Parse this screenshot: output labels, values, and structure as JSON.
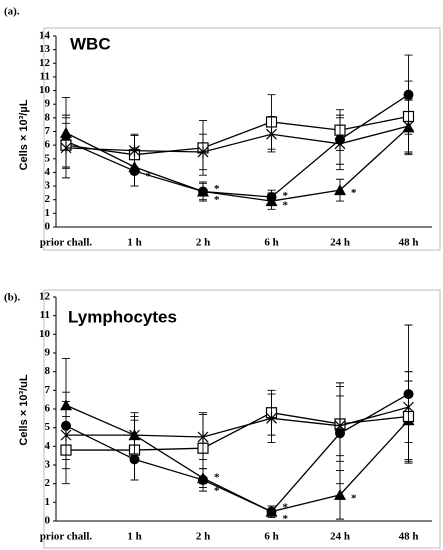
{
  "chart_data": [
    {
      "type": "line",
      "panel_label": "(a).",
      "title": "WBC",
      "ylabel": "Cells × 10³/µL",
      "categories": [
        "prior chall.",
        "1 h",
        "2 h",
        "6 h",
        "24 h",
        "48 h"
      ],
      "ylim": [
        0,
        14
      ],
      "yticks": [
        0,
        1,
        2,
        3,
        4,
        5,
        6,
        7,
        8,
        9,
        10,
        11,
        12,
        13,
        14
      ],
      "series": [
        {
          "marker": "circle",
          "color": "#000000",
          "values": [
            6.3,
            4.1,
            2.6,
            2.2,
            6.4,
            9.7
          ],
          "errors": [
            1.9,
            1.1,
            0.6,
            0.5,
            1.8,
            2.9
          ]
        },
        {
          "marker": "triangle",
          "color": "#000000",
          "values": [
            6.9,
            4.4,
            2.6,
            1.9,
            2.7,
            7.3
          ],
          "errors": [
            2.6,
            1.4,
            0.7,
            0.6,
            0.8,
            2.0
          ]
        },
        {
          "marker": "square",
          "color": "#000000",
          "values": [
            6.0,
            5.3,
            5.8,
            7.7,
            7.1,
            8.1
          ],
          "errors": [
            1.6,
            1.4,
            2.0,
            2.0,
            1.5,
            2.6
          ]
        },
        {
          "marker": "cross",
          "color": "#000000",
          "values": [
            5.8,
            5.6,
            5.5,
            6.8,
            6.1,
            7.4
          ],
          "errors": [
            2.2,
            1.2,
            1.3,
            1.3,
            1.9,
            2.0
          ]
        }
      ],
      "annotations": [
        {
          "text": "*",
          "x": "1 h",
          "y": 3.8
        },
        {
          "text": "*",
          "x": "2 h",
          "y": 2.9
        },
        {
          "text": "*",
          "x": "2 h",
          "y": 2.1
        },
        {
          "text": "*",
          "x": "6 h",
          "y": 2.4
        },
        {
          "text": "*",
          "x": "6 h",
          "y": 1.7
        },
        {
          "text": "*",
          "x": "24 h",
          "y": 2.6
        }
      ]
    },
    {
      "type": "line",
      "panel_label": "(b).",
      "title": "Lymphocytes",
      "ylabel": "Cells × 10³/uL",
      "categories": [
        "prior chall.",
        "1 h",
        "2 h",
        "6 h",
        "24 h",
        "48 h"
      ],
      "ylim": [
        0,
        12
      ],
      "yticks": [
        0,
        1,
        2,
        3,
        4,
        5,
        6,
        7,
        8,
        9,
        10,
        11,
        12
      ],
      "series": [
        {
          "marker": "circle",
          "color": "#000000",
          "values": [
            5.1,
            3.3,
            2.2,
            0.5,
            4.7,
            6.8
          ],
          "errors": [
            1.8,
            1.1,
            0.6,
            0.3,
            2.7,
            3.7
          ]
        },
        {
          "marker": "triangle",
          "color": "#000000",
          "values": [
            6.2,
            4.6,
            2.3,
            0.5,
            1.4,
            5.4
          ],
          "errors": [
            2.5,
            1.2,
            0.5,
            0.3,
            1.3,
            2.1
          ]
        },
        {
          "marker": "square",
          "color": "#000000",
          "values": [
            3.8,
            3.8,
            3.9,
            5.8,
            5.2,
            5.6
          ],
          "errors": [
            1.8,
            1.6,
            1.9,
            1.2,
            2.0,
            2.4
          ]
        },
        {
          "marker": "cross",
          "color": "#000000",
          "values": [
            4.6,
            4.6,
            4.5,
            5.5,
            5.1,
            6.1
          ],
          "errors": [
            1.8,
            1.0,
            1.2,
            1.3,
            1.6,
            1.9
          ]
        }
      ],
      "annotations": [
        {
          "text": "*",
          "x": "2 h",
          "y": 2.4
        },
        {
          "text": "*",
          "x": "2 h",
          "y": 1.7
        },
        {
          "text": "*",
          "x": "6 h",
          "y": 0.8
        },
        {
          "text": "*",
          "x": "6 h",
          "y": 0.2
        },
        {
          "text": "*",
          "x": "24 h",
          "y": 1.3
        }
      ]
    }
  ]
}
